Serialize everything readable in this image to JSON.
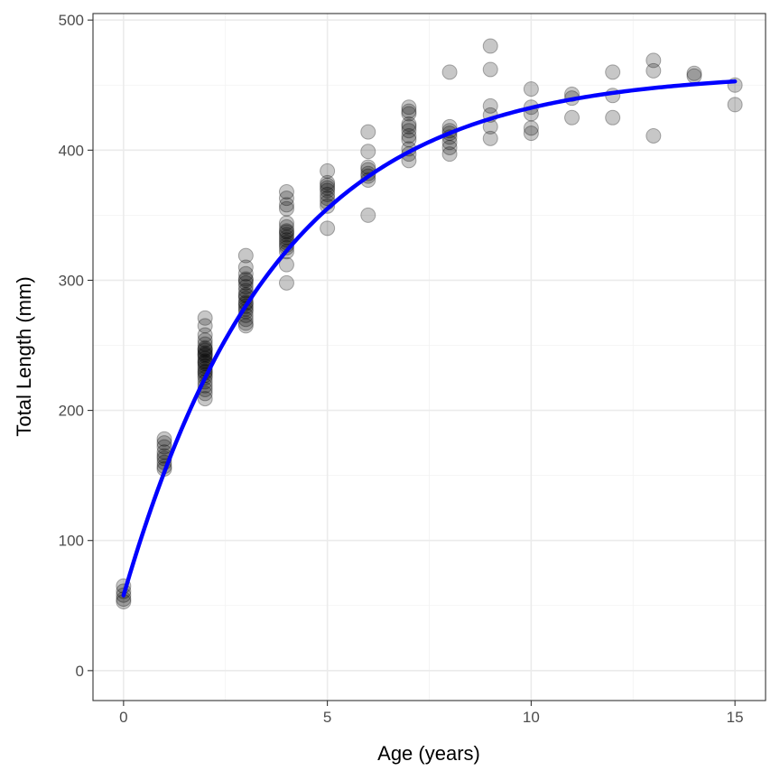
{
  "chart_data": {
    "type": "scatter",
    "title": "",
    "xlabel": "Age (years)",
    "ylabel": "Total Length (mm)",
    "xlim": [
      -0.75,
      15.75
    ],
    "ylim": [
      -23,
      505
    ],
    "x_ticks": [
      0,
      5,
      10,
      15
    ],
    "x_tick_labels": [
      "0",
      "5",
      "10",
      "15"
    ],
    "y_ticks": [
      0,
      100,
      200,
      300,
      400,
      500
    ],
    "y_tick_labels": [
      "0",
      "100",
      "200",
      "300",
      "400",
      "500"
    ],
    "grid": true,
    "legend": "none",
    "colors": {
      "points": "#000000",
      "points_opacity": 0.22,
      "fit_line": "#0000ff"
    },
    "series": [
      {
        "kind": "points",
        "x": [
          0,
          0,
          0,
          0,
          0,
          1,
          1,
          1,
          1,
          1,
          1,
          1,
          1,
          1,
          2,
          2,
          2,
          2,
          2,
          2,
          2,
          2,
          2,
          2,
          2,
          2,
          2,
          2,
          2,
          2,
          2,
          2,
          2,
          2,
          2,
          2,
          2,
          2,
          2,
          2,
          3,
          3,
          3,
          3,
          3,
          3,
          3,
          3,
          3,
          3,
          3,
          3,
          3,
          3,
          3,
          3,
          3,
          3,
          3,
          3,
          4,
          4,
          4,
          4,
          4,
          4,
          4,
          4,
          4,
          4,
          4,
          4,
          4,
          4,
          4,
          4,
          4,
          5,
          5,
          5,
          5,
          5,
          5,
          5,
          5,
          5,
          5,
          6,
          6,
          6,
          6,
          6,
          6,
          6,
          6,
          7,
          7,
          7,
          7,
          7,
          7,
          7,
          7,
          7,
          7,
          7,
          8,
          8,
          8,
          8,
          8,
          8,
          8,
          8,
          9,
          9,
          9,
          9,
          9,
          9,
          10,
          10,
          10,
          10,
          10,
          11,
          11,
          11,
          12,
          12,
          12,
          13,
          13,
          13,
          14,
          14,
          15,
          15
        ],
        "y": [
          65,
          61,
          58,
          55,
          53,
          178,
          175,
          172,
          168,
          165,
          163,
          160,
          157,
          155,
          271,
          265,
          258,
          254,
          251,
          248,
          246,
          244,
          242,
          240,
          238,
          236,
          234,
          232,
          230,
          227,
          225,
          222,
          219,
          216,
          213,
          209,
          247,
          243,
          237,
          229,
          319,
          310,
          305,
          301,
          298,
          295,
          292,
          289,
          286,
          283,
          280,
          278,
          276,
          273,
          270,
          267,
          265,
          300,
          288,
          282,
          368,
          363,
          358,
          355,
          344,
          341,
          338,
          335,
          333,
          331,
          329,
          327,
          325,
          322,
          312,
          298,
          337,
          384,
          375,
          373,
          371,
          369,
          366,
          363,
          360,
          357,
          340,
          414,
          399,
          387,
          385,
          382,
          380,
          377,
          350,
          433,
          430,
          420,
          418,
          415,
          408,
          401,
          397,
          392,
          428,
          411,
          460,
          418,
          413,
          410,
          406,
          402,
          397,
          415,
          480,
          462,
          434,
          427,
          418,
          409,
          447,
          433,
          428,
          417,
          413,
          443,
          440,
          425,
          460,
          442,
          425,
          469,
          461,
          411,
          459,
          457,
          450,
          435
        ]
      },
      {
        "kind": "fit-line",
        "model": "von Bertalanffy",
        "Linf": 460,
        "K": 0.2686,
        "t0": -0.5
      }
    ]
  }
}
